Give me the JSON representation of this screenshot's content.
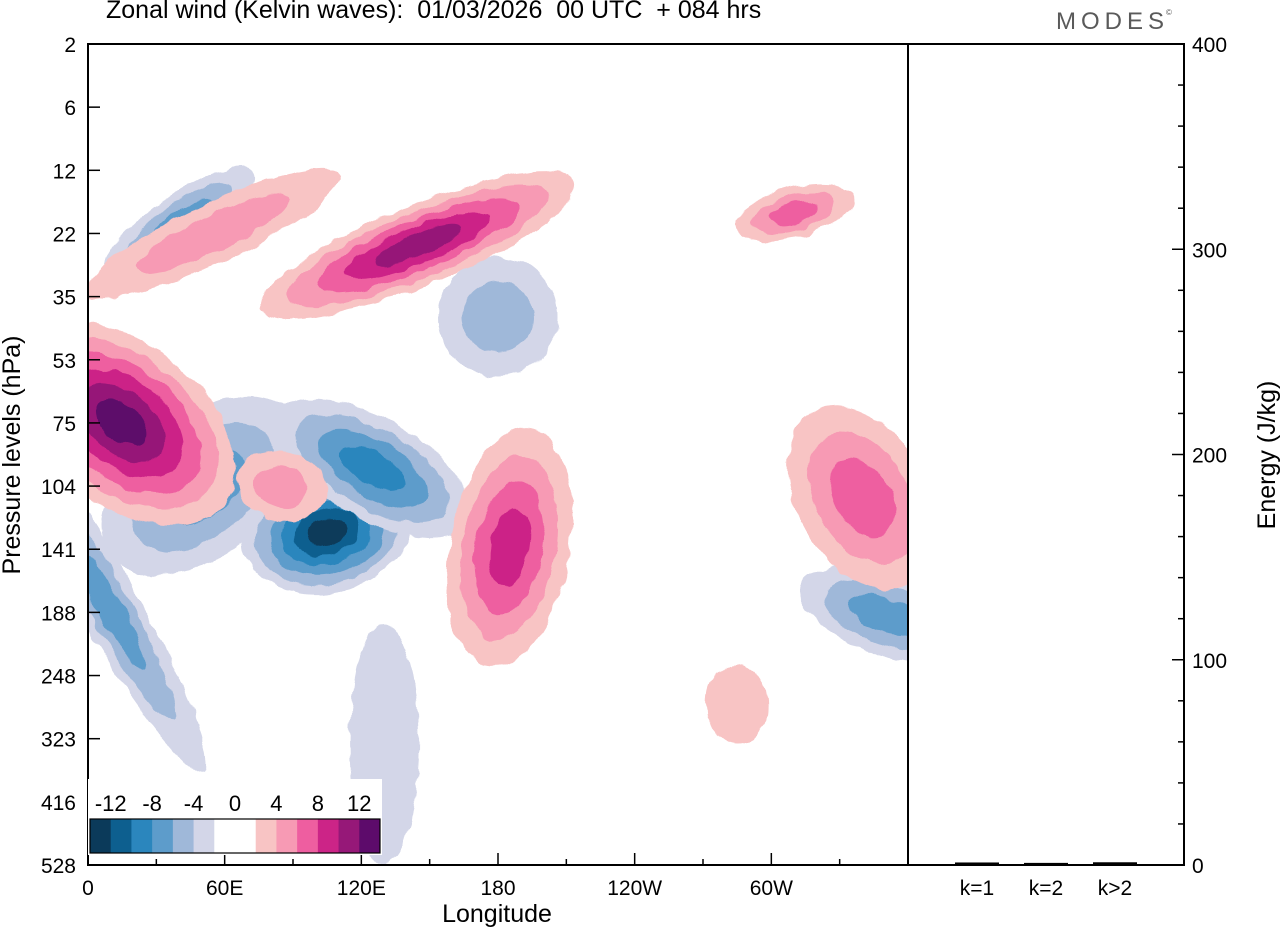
{
  "header": {
    "title": "Zonal wind (Kelvin waves):  01/03/2026  00 UTC  + 084 hrs",
    "brand": "MODES"
  },
  "chart_data": [
    {
      "type": "heatmap",
      "title": "Zonal wind (Kelvin waves):  01/03/2026  00 UTC  + 084 hrs",
      "xlabel": "Longitude",
      "ylabel": "Pressure levels (hPa)",
      "x_ticks": [
        "0",
        "60E",
        "120E",
        "180",
        "120W",
        "60W"
      ],
      "y_ticks": [
        "2",
        "6",
        "12",
        "22",
        "35",
        "53",
        "75",
        "104",
        "141",
        "188",
        "248",
        "323",
        "416",
        "528"
      ],
      "colorbar": {
        "labels": [
          "-12",
          "-8",
          "-4",
          "0",
          "4",
          "8",
          "12"
        ],
        "colors": [
          "#0b3a5a",
          "#0d5f8f",
          "#2b86bd",
          "#5d9ccb",
          "#9fb8d9",
          "#d3d6e8",
          "#ffffff",
          "#ffffff",
          "#f8c4c4",
          "#f79ab4",
          "#ee5ea0",
          "#cc2487",
          "#961878",
          "#5d0b6b"
        ]
      },
      "contours": [
        {
          "sign": "negative",
          "level": 1,
          "lon": 50,
          "plev": 104,
          "peak": 6
        },
        {
          "sign": "negative",
          "level": 2,
          "lon": 105,
          "plev": 130,
          "peak": 14
        },
        {
          "sign": "negative",
          "level": 3,
          "lon": 125,
          "plev": 95,
          "peak": 8
        },
        {
          "sign": "negative",
          "level": 4,
          "lon": 5,
          "plev": 170,
          "peak": 6
        },
        {
          "sign": "negative",
          "level": 5,
          "lon": 40,
          "plev": 20,
          "peak": 6
        },
        {
          "sign": "negative",
          "level": 6,
          "lon": 180,
          "plev": 40,
          "peak": 4
        },
        {
          "sign": "negative",
          "level": 7,
          "lon": 350,
          "plev": 190,
          "peak": 6
        },
        {
          "sign": "negative",
          "level": 8,
          "lon": 130,
          "plev": 330,
          "peak": 2
        },
        {
          "sign": "positive",
          "level": 1,
          "lon": 15,
          "plev": 75,
          "peak": 12
        },
        {
          "sign": "positive",
          "level": 2,
          "lon": 145,
          "plev": 24,
          "peak": 10
        },
        {
          "sign": "positive",
          "level": 3,
          "lon": 185,
          "plev": 140,
          "peak": 7
        },
        {
          "sign": "positive",
          "level": 4,
          "lon": 340,
          "plev": 110,
          "peak": 6
        },
        {
          "sign": "positive",
          "level": 5,
          "lon": 55,
          "plev": 22,
          "peak": 3
        },
        {
          "sign": "positive",
          "level": 6,
          "lon": 310,
          "plev": 18,
          "peak": 5
        },
        {
          "sign": "positive",
          "level": 7,
          "lon": 85,
          "plev": 104,
          "peak": 4
        },
        {
          "sign": "positive",
          "level": 8,
          "lon": 285,
          "plev": 280,
          "peak": 2
        }
      ]
    },
    {
      "type": "bar",
      "ylabel": "Energy (J/kg)",
      "categories": [
        "k=1",
        "k=2",
        "k>2"
      ],
      "values": [
        0.5,
        0.3,
        0.6
      ],
      "ylim": [
        0,
        400
      ],
      "y_ticks": [
        "0",
        "100",
        "200",
        "300",
        "400"
      ]
    }
  ]
}
